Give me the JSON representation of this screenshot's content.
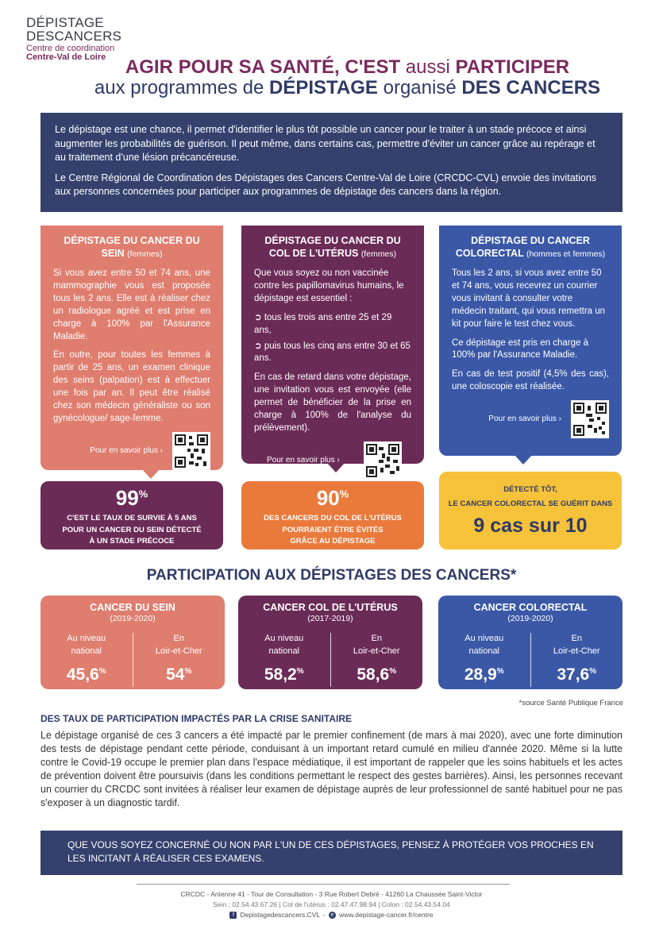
{
  "logo": {
    "line1": "DÉPISTAGE",
    "line2": "DESCANCERS",
    "line3": "Centre de coordination",
    "line4": "Centre-Val de Loire"
  },
  "headline": {
    "part1_bold": "AGIR POUR SA SANTÉ, C'EST",
    "part1_light": " aussi ",
    "part1_bold2": "PARTICIPER",
    "part2_light": "aux programmes de ",
    "part2_bold": "DÉPISTAGE",
    "part2_light2": " organisé ",
    "part2_bold2": "DES CANCERS"
  },
  "intro": {
    "p1": "Le dépistage est une chance, il permet d'identifier le plus tôt possible un cancer pour le traiter à un stade précoce et ainsi augmenter les probabilités de guérison. Il peut même, dans certains cas, permettre d'éviter un cancer grâce au repérage et au traitement d'une lésion précancéreuse.",
    "p2": "Le Centre Régional de Coordination des Dépistages des Cancers Centre-Val de Loire (CRCDC-CVL) envoie des invitations aux personnes concernées pour participer aux programmes de dépistage des cancers dans la région."
  },
  "cards": {
    "sein": {
      "title": "DÉPISTAGE DU CANCER DU SEIN",
      "sub": "(femmes)",
      "p1": "Si vous avez entre 50 et 74 ans, une mammographie vous est proposée tous les 2 ans. Elle est à réaliser chez un radiologue agréé et est prise en charge à 100% par l'Assurance Maladie.",
      "p2": "En outre, pour toutes les femmes à partir de 25 ans, un examen clinique des seins (palpation) est à effectuer une fois par an. Il peut être réalisé chez son médecin généraliste ou son gynécologue/ sage-femme.",
      "more": "Pour en savoir plus ›"
    },
    "col": {
      "title": "DÉPISTAGE DU CANCER DU COL DE L'UTÉRUS",
      "sub": "(femmes)",
      "p1": "Que vous soyez ou non vaccinée contre les papillomavirus humains, le dépistage est essentiel :",
      "b1": "➲ tous les trois ans entre 25 et 29 ans,",
      "b2": "➲ puis tous les cinq ans entre 30 et 65 ans.",
      "p2": "En cas de retard dans votre dépistage, une invitation vous est envoyée (elle permet de bénéficier de la prise en charge à 100% de l'analyse du prélèvement).",
      "more": "Pour en savoir plus ›"
    },
    "colo": {
      "title": "DÉPISTAGE DU CANCER COLORECTAL",
      "sub": "(hommes et femmes)",
      "p1": "Tous les 2 ans, si vous avez entre 50 et 74 ans, vous recevrez un courrier vous invitant à consulter votre médecin traitant, qui vous remettra un kit pour faire le test chez vous.",
      "p2": "Ce dépistage est pris en charge à 100% par l'Assurance Maladie.",
      "p3": "En cas de test positif (4,5% des cas), une coloscopie est réalisée.",
      "more": "Pour en savoir plus ›"
    }
  },
  "stats": {
    "sein": {
      "value": "99",
      "unit": "%",
      "l1": "C'EST LE TAUX DE SURVIE À 5 ANS",
      "l2": "POUR UN CANCER DU SEIN DÉTECTÉ",
      "l3": "À UN STADE PRÉCOCE"
    },
    "col": {
      "value": "90",
      "unit": "%",
      "l1": "DES CANCERS DU COL DE L'UTÉRUS",
      "l2": "POURRAIENT ÊTRE ÉVITÉS",
      "l3": "GRÂCE AU DÉPISTAGE"
    },
    "colo": {
      "l1": "DÉTECTÉ TÔT,",
      "l2": "LE CANCER COLORECTAL SE GUÉRIT DANS",
      "big": "9 cas sur 10"
    }
  },
  "participation": {
    "title": "PARTICIPATION AUX DÉPISTAGES DES CANCERS*",
    "boxes": [
      {
        "title": "CANCER DU SEIN",
        "years": "(2019-2020)",
        "l_label1": "Au niveau",
        "l_label2": "national",
        "l_val": "45,6",
        "r_label1": "En",
        "r_label2": "Loir-et-Cher",
        "r_val": "54",
        "unit": "%"
      },
      {
        "title": "CANCER COL DE L'UTÉRUS",
        "years": "(2017-2019)",
        "l_label1": "Au niveau",
        "l_label2": "national",
        "l_val": "58,2",
        "r_label1": "En",
        "r_label2": "Loir-et-Cher",
        "r_val": "58,6",
        "unit": "%"
      },
      {
        "title": "CANCER COLORECTAL",
        "years": "(2019-2020)",
        "l_label1": "Au niveau",
        "l_label2": "national",
        "l_val": "28,9",
        "r_label1": "En",
        "r_label2": "Loir-et-Cher",
        "r_val": "37,6",
        "unit": "%"
      }
    ],
    "source": "*source Santé Publique France"
  },
  "crise": {
    "title": "DES TAUX DE PARTICIPATION IMPACTÉS PAR LA CRISE SANITAIRE",
    "text": "Le dépistage organisé de ces 3 cancers a été impacté par le premier confinement (de mars à mai 2020), avec une forte diminution des tests de dépistage pendant cette période, conduisant à un important retard cumulé en milieu d'année 2020. Même si la lutte contre le Covid-19 occupe le premier plan dans l'espace médiatique, il est important de rappeler que les soins habituels et les actes de prévention doivent être poursuivis (dans les conditions permettant le respect des gestes barrières). Ainsi, les personnes recevant un courrier du CRCDC sont invitées à réaliser leur examen de dépistage auprès de leur professionnel de santé habituel pour ne pas s'exposer à un diagnostic tardif."
  },
  "banner": "QUE VOUS SOYEZ CONCERNÉ OU  NON PAR L'UN DE CES DÉPISTAGES, PENSEZ À PROTÉGER VOS PROCHES EN LES INCITANT À RÉALISER CES EXAMENS.",
  "footer": {
    "l1": "CRCDC - Antenne 41 -  Tour de Consultation - 3 Rue Robert Debré - 41260 La Chaussée Saint-Victor",
    "l2": "Sein : 02.54.43.67.26 | Col de l'utérus : 02.47.47.98.94  | Colon : 02.54.43.54.04",
    "facebook": "Depistagedescancers.CVL",
    "sep": " - ",
    "web": "www.depistage-cancer.fr/centre"
  }
}
